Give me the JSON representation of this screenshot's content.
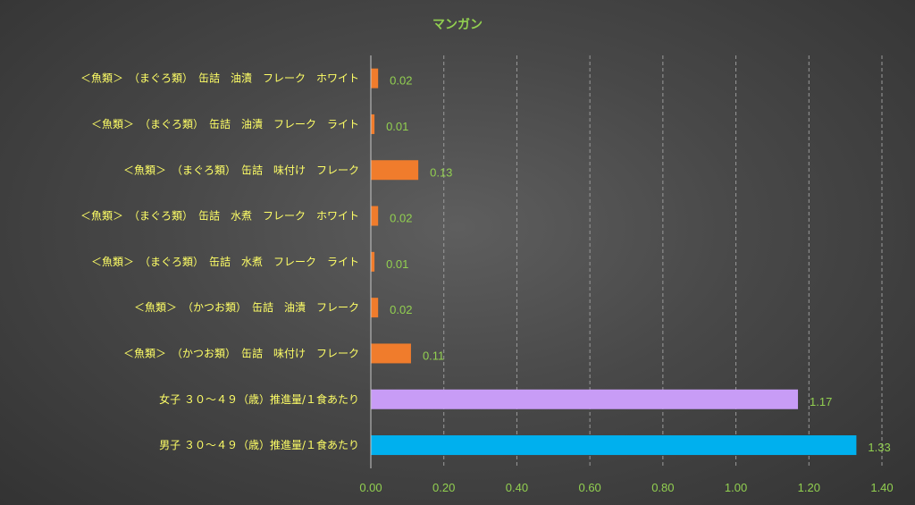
{
  "chart_data": {
    "type": "bar",
    "orientation": "horizontal",
    "title": "マンガン",
    "xlabel": "",
    "ylabel": "",
    "xlim": [
      0,
      1.4
    ],
    "x_ticks": [
      "0.00",
      "0.20",
      "0.40",
      "0.60",
      "0.80",
      "1.00",
      "1.20",
      "1.40"
    ],
    "grid": "vertical dashed",
    "legend": "none",
    "categories": [
      "＜魚類＞　（まぐろ類）　缶詰　油漬　フレーク　ホワイト",
      "＜魚類＞　（まぐろ類）　缶詰　油漬　フレーク　ライト",
      "＜魚類＞　（まぐろ類）　缶詰　味付け　フレーク",
      "＜魚類＞　（まぐろ類）　缶詰　水煮　フレーク　ホワイト",
      "＜魚類＞　（まぐろ類）　缶詰　水煮　フレーク　ライト",
      "＜魚類＞　（かつお類）　缶詰　油漬　フレーク",
      "＜魚類＞　（かつお類）　缶詰　味付け　フレーク",
      "女子 ３０～４９（歳）推進量/１食あたり",
      "男子 ３０～４９（歳）推進量/１食あたり"
    ],
    "values": [
      0.02,
      0.01,
      0.13,
      0.02,
      0.01,
      0.02,
      0.11,
      1.17,
      1.33
    ],
    "value_labels": [
      "0.02",
      "0.01",
      "0.13",
      "0.02",
      "0.01",
      "0.02",
      "0.11",
      "1.17",
      "1.33"
    ],
    "bar_colors": [
      "#f07c2c",
      "#f07c2c",
      "#f07c2c",
      "#f07c2c",
      "#f07c2c",
      "#f07c2c",
      "#f07c2c",
      "#c89cf6",
      "#00b0ee"
    ]
  },
  "colors": {
    "title": "#92d050",
    "category_label": "#ffff66",
    "tick_label": "#92d050",
    "data_label": "#92d050",
    "grid": "#9a9a9a",
    "axis": "#c8c8c8"
  }
}
